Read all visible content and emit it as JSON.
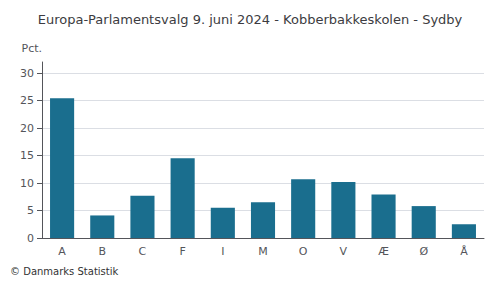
{
  "chart_data": {
    "type": "bar",
    "title": "Europa-Parlamentsvalg 9. juni 2024 - Kobberbakkeskolen - Sydby",
    "categories": [
      "A",
      "B",
      "C",
      "F",
      "I",
      "M",
      "O",
      "V",
      "Æ",
      "Ø",
      "Å"
    ],
    "values": [
      25.4,
      4.1,
      7.7,
      14.5,
      5.5,
      6.5,
      10.7,
      10.2,
      7.9,
      5.8,
      2.5
    ],
    "color": "#1a6e8e",
    "ylabel": "Pct.",
    "ylim": [
      0,
      32
    ],
    "yticks": [
      0,
      5,
      10,
      15,
      20,
      25,
      30
    ],
    "grid": true,
    "footer": "© Danmarks Statistik"
  }
}
